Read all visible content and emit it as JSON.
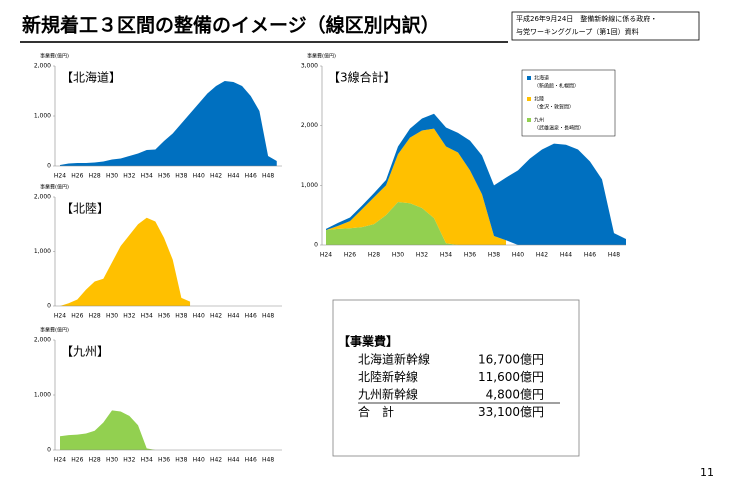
{
  "title": "新規着工３区間の整備のイメージ（線区別内訳）",
  "source_note": [
    "平成26年9月24日　整備新幹線に係る政府・",
    "与党ワーキンググループ（第1回）資料"
  ],
  "chart_data": [
    {
      "type": "area",
      "title": "【北海道】",
      "y_label": "事業費(億円)",
      "categories": [
        "H24",
        null,
        "H26",
        null,
        "H28",
        null,
        "H30",
        null,
        "H32",
        null,
        "H34",
        null,
        "H36",
        null,
        "H38",
        null,
        "H40",
        null,
        "H42",
        null,
        "H44",
        null,
        "H46",
        null,
        "H48",
        null
      ],
      "series": [
        {
          "name": "北海道",
          "color": "#0070c0",
          "values": [
            20,
            50,
            60,
            60,
            70,
            90,
            130,
            150,
            200,
            250,
            320,
            330,
            500,
            650,
            850,
            1050,
            1250,
            1450,
            1600,
            1700,
            1680,
            1600,
            1400,
            1100,
            200,
            100
          ]
        }
      ],
      "ylim": [
        0,
        2000
      ],
      "yticks": [
        0,
        {
          "value": 1000,
          "label": "1,000"
        },
        {
          "value": 2000,
          "label": "2,000"
        }
      ]
    },
    {
      "type": "area",
      "title": "【北陸】",
      "y_label": "事業費(億円)",
      "categories": [
        "H24",
        null,
        "H26",
        null,
        "H28",
        null,
        "H30",
        null,
        "H32",
        null,
        "H34",
        null,
        "H36",
        null,
        "H38",
        null,
        "H40",
        null,
        "H42",
        null,
        "H44",
        null,
        "H46",
        null,
        "H48",
        null
      ],
      "series": [
        {
          "name": "北陸",
          "color": "#ffc000",
          "values": [
            0,
            50,
            120,
            300,
            450,
            500,
            800,
            1100,
            1300,
            1500,
            1620,
            1550,
            1250,
            850,
            150,
            80,
            null,
            null,
            null,
            null,
            null,
            null,
            null,
            null,
            null,
            null
          ]
        }
      ],
      "ylim": [
        0,
        2000
      ],
      "yticks": [
        0,
        {
          "value": 1000,
          "label": "1,000"
        },
        {
          "value": 2000,
          "label": "2,000"
        }
      ]
    },
    {
      "type": "area",
      "title": "【九州】",
      "y_label": "事業費(億円)",
      "categories": [
        "H24",
        null,
        "H26",
        null,
        "H28",
        null,
        "H30",
        null,
        "H32",
        null,
        "H34",
        null,
        "H36",
        null,
        "H38",
        null,
        "H40",
        null,
        "H42",
        null,
        "H44",
        null,
        "H46",
        null,
        "H48",
        null
      ],
      "series": [
        {
          "name": "九州",
          "color": "#92d050",
          "values": [
            250,
            270,
            280,
            300,
            350,
            500,
            720,
            700,
            620,
            450,
            30,
            0,
            null,
            null,
            null,
            null,
            null,
            null,
            null,
            null,
            null,
            null,
            null,
            null,
            null,
            null
          ]
        }
      ],
      "ylim": [
        0,
        2000
      ],
      "yticks": [
        0,
        {
          "value": 1000,
          "label": "1,000"
        },
        {
          "value": 2000,
          "label": "2,000"
        }
      ]
    },
    {
      "type": "area",
      "stacked": true,
      "title": "【3線合計】",
      "y_label": "事業費(億円)",
      "categories": [
        "H24",
        null,
        "H26",
        null,
        "H28",
        null,
        "H30",
        null,
        "H32",
        null,
        "H34",
        null,
        "H36",
        null,
        "H38",
        null,
        "H40",
        null,
        "H42",
        null,
        "H44",
        null,
        "H46",
        null,
        "H48",
        null
      ],
      "series": [
        {
          "name": "九州",
          "note": "（武雄温泉・長崎間）",
          "color": "#92d050",
          "values": [
            250,
            270,
            280,
            300,
            350,
            500,
            720,
            700,
            620,
            450,
            30,
            0,
            null,
            null,
            null,
            null,
            null,
            null,
            null,
            null,
            null,
            null,
            null,
            null,
            null,
            null
          ]
        },
        {
          "name": "北陸",
          "note": "（金沢・敦賀間）",
          "color": "#ffc000",
          "values": [
            0,
            50,
            120,
            300,
            450,
            500,
            800,
            1100,
            1300,
            1500,
            1620,
            1550,
            1250,
            850,
            150,
            80,
            null,
            null,
            null,
            null,
            null,
            null,
            null,
            null,
            null,
            null
          ]
        },
        {
          "name": "北海道",
          "note": "（新函館・札幌間）",
          "color": "#0070c0",
          "values": [
            20,
            50,
            60,
            60,
            70,
            90,
            130,
            150,
            200,
            250,
            320,
            330,
            500,
            650,
            850,
            1050,
            1250,
            1450,
            1600,
            1700,
            1680,
            1600,
            1400,
            1100,
            200,
            100
          ]
        }
      ],
      "ylim": [
        0,
        3000
      ],
      "yticks": [
        0,
        {
          "value": 1000,
          "label": "1,000"
        },
        {
          "value": 2000,
          "label": "2,000"
        },
        {
          "value": 3000,
          "label": "3,000"
        }
      ]
    }
  ],
  "cost_table": {
    "heading": "【事業費】",
    "rows": [
      [
        "北海道新幹線",
        "16,700億円"
      ],
      [
        "北陸新幹線",
        "11,600億円"
      ],
      [
        "九州新幹線",
        "4,800億円"
      ],
      [
        "合　計",
        "33,100億円"
      ]
    ]
  },
  "page_number": "11"
}
